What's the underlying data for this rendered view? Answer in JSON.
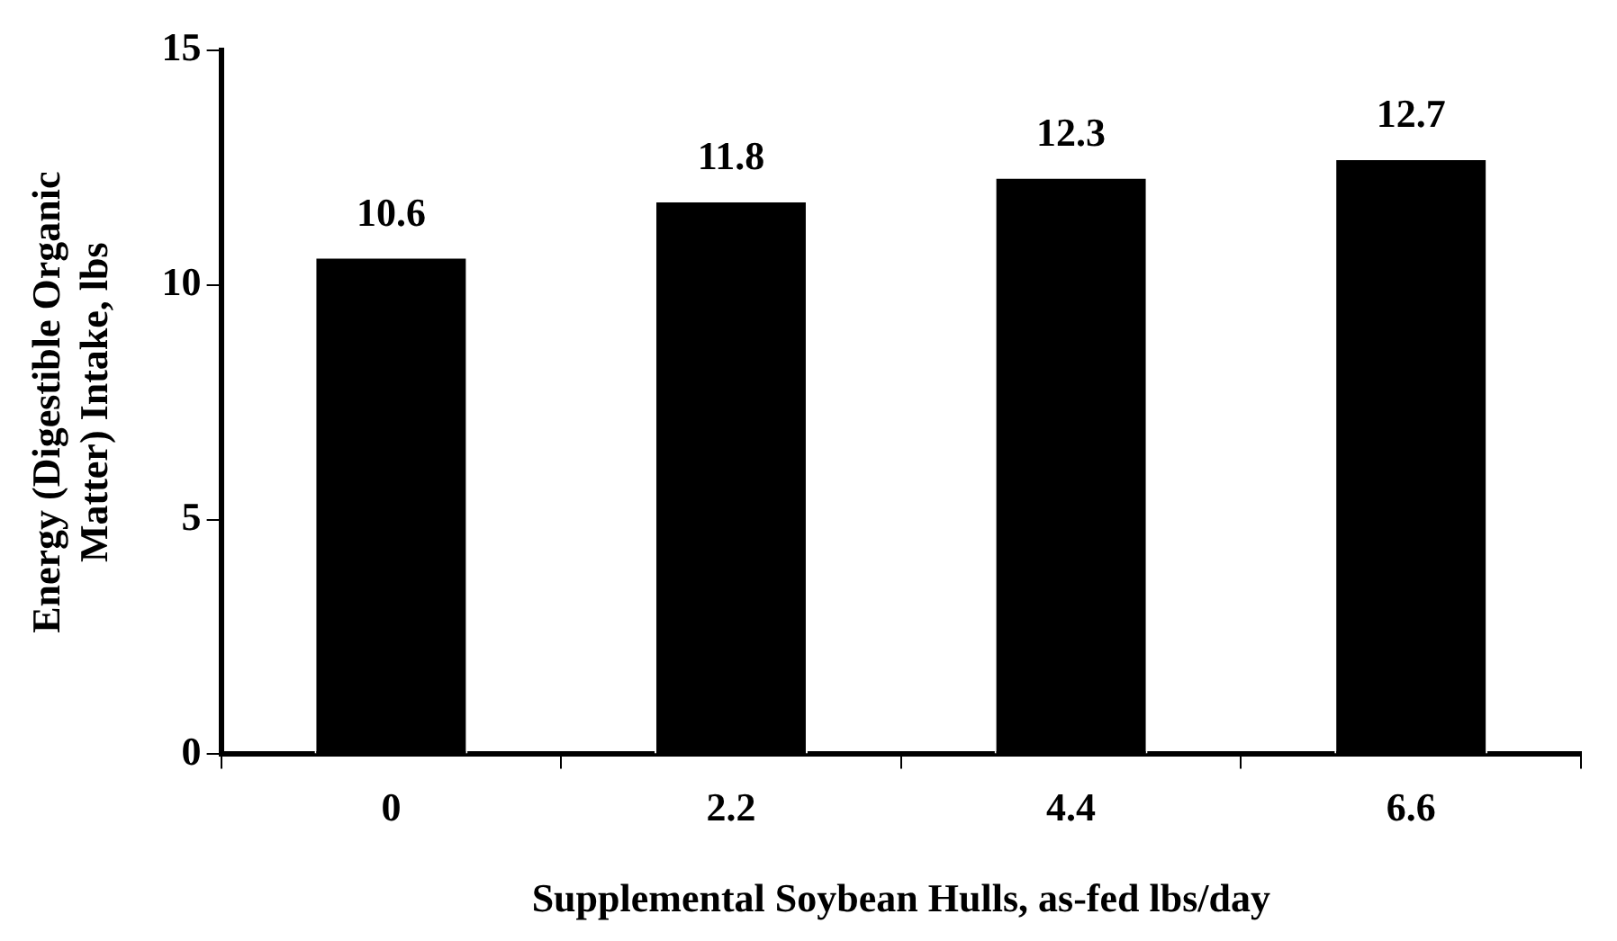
{
  "chart_data": {
    "type": "bar",
    "xlabel": "Supplemental Soybean Hulls, as-fed lbs/day",
    "ylabel": "Energy (Digestible Organic Matter) Intake, lbs",
    "categories": [
      "0",
      "2.2",
      "4.4",
      "6.6"
    ],
    "values": [
      10.6,
      11.8,
      12.3,
      12.7
    ],
    "color": "#000000",
    "ylim": [
      0,
      15
    ],
    "yticks": [
      0,
      5,
      10,
      15
    ],
    "grid": false,
    "legend": false,
    "data_labels": true
  }
}
